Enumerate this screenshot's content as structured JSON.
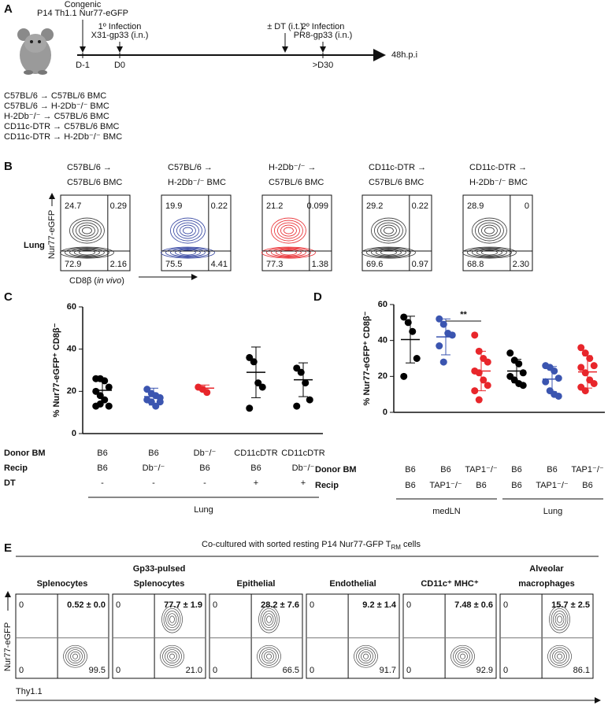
{
  "panel_labels": [
    "A",
    "B",
    "C",
    "D",
    "E"
  ],
  "panel_a": {
    "events": [
      {
        "lines": [
          "Congenic",
          "P14 Th1.1 Nur77-eGFP"
        ],
        "day": "D-1"
      },
      {
        "lines": [
          "1º Infection",
          "X31-gp33 (i.n.)"
        ],
        "day": "D0"
      },
      {
        "lines": [
          "± DT (i.t.)"
        ]
      },
      {
        "lines": [
          "2º Infection",
          "PR8-gp33 (i.n.)"
        ],
        "day": ">D30"
      }
    ],
    "end_label": "48h.p.i",
    "groups": [
      {
        "text": "C57BL/6 → C57BL/6 BMC",
        "color": "#000000"
      },
      {
        "text": "C57BL/6 → H-2Db⁻/⁻ BMC",
        "color": "#2e3f9e"
      },
      {
        "text": "H-2Db⁻/⁻ → C57BL/6 BMC",
        "color": "#e8262b"
      },
      {
        "text": "CD11c-DTR → C57BL/6 BMC",
        "color": "#000000"
      },
      {
        "text": "CD11c-DTR → H-2Db⁻/⁻ BMC",
        "color": "#000000"
      }
    ]
  },
  "panel_b": {
    "row_label": "Lung",
    "y_label": "Nur77-eGFP",
    "x_label_parts": [
      "CD8β (",
      "in vivo",
      ")"
    ],
    "plots": [
      {
        "title": [
          "C57BL/6 →",
          "C57BL/6 BMC"
        ],
        "color": "#333333",
        "quadrants": [
          "24.7",
          "0.29",
          "72.9",
          "2.16"
        ]
      },
      {
        "title": [
          "C57BL/6 →",
          "H-2Db⁻/⁻ BMC"
        ],
        "color": "#2e3f9e",
        "quadrants": [
          "19.9",
          "0.22",
          "75.5",
          "4.41"
        ]
      },
      {
        "title": [
          "H-2Db⁻/⁻ →",
          "C57BL/6 BMC"
        ],
        "color": "#e8262b",
        "quadrants": [
          "21.2",
          "0.099",
          "77.3",
          "1.38"
        ]
      },
      {
        "title": [
          "CD11c-DTR →",
          "C57BL/6 BMC"
        ],
        "color": "#333333",
        "quadrants": [
          "29.2",
          "0.22",
          "69.6",
          "0.97"
        ]
      },
      {
        "title": [
          "CD11c-DTR →",
          "H-2Db⁻/⁻ BMC"
        ],
        "color": "#333333",
        "quadrants": [
          "28.9",
          "0",
          "68.8",
          "2.30"
        ]
      }
    ]
  },
  "chart_data": [
    {
      "type": "dot-plot",
      "y_label": "% Nur77-eGFP⁺ CD8β⁻",
      "ylim": [
        0,
        60
      ],
      "yticks": [
        0,
        20,
        40,
        60
      ],
      "groups": [
        {
          "color": "#000000",
          "values": [
            26,
            26,
            25,
            22,
            20,
            18,
            16,
            13,
            13,
            14
          ],
          "mean": 20.5,
          "sd": 5.5
        },
        {
          "color": "#3b55b0",
          "values": [
            21,
            19,
            18,
            17,
            16,
            15,
            13,
            15
          ],
          "mean": 17.5,
          "sd": 4
        },
        {
          "color": "#e8262b",
          "values": [
            22,
            21,
            19.5
          ],
          "mean": 21.5,
          "sd": 1.5
        },
        {
          "color": "#000000",
          "values": [
            36,
            34,
            24,
            22,
            12
          ],
          "mean": 29,
          "sd": 12
        },
        {
          "color": "#000000",
          "values": [
            31,
            29,
            24,
            16,
            13
          ],
          "mean": 25.5,
          "sd": 8
        }
      ],
      "table": [
        {
          "label": "Donor BM",
          "cells": [
            "B6",
            "B6",
            "Db⁻/⁻",
            "CD11cDTR",
            "CD11cDTR"
          ]
        },
        {
          "label": "Recip",
          "cells": [
            "B6",
            "Db⁻/⁻",
            "B6",
            "B6",
            "Db⁻/⁻"
          ]
        },
        {
          "label": "DT",
          "cells": [
            "-",
            "-",
            "-",
            "+",
            "+"
          ]
        }
      ],
      "brackets": [
        "Lung"
      ]
    },
    {
      "type": "dot-plot",
      "y_label": "% Nur77-eGFP⁺ CD8β⁻",
      "ylim": [
        0,
        60
      ],
      "yticks": [
        0,
        20,
        40,
        60
      ],
      "groups": [
        {
          "color": "#000000",
          "values": [
            53,
            50,
            45,
            30,
            20
          ],
          "mean": 40.5,
          "sd": 13
        },
        {
          "color": "#3b55b0",
          "values": [
            52,
            49,
            44,
            43,
            37,
            28
          ],
          "mean": 42,
          "sd": 10
        },
        {
          "color": "#e8262b",
          "values": [
            43,
            34,
            30,
            28,
            23,
            22,
            18,
            15,
            12,
            7
          ],
          "mean": 23,
          "sd": 11
        },
        {
          "color": "#000000",
          "values": [
            33,
            29,
            27,
            22,
            20,
            18,
            16,
            15
          ],
          "mean": 23,
          "sd": 6.5
        },
        {
          "color": "#3b55b0",
          "values": [
            26,
            25,
            23,
            19,
            17,
            12,
            10,
            9
          ],
          "mean": 18.5,
          "sd": 7
        },
        {
          "color": "#e8262b",
          "values": [
            36,
            33,
            30,
            26,
            25,
            22,
            18,
            16,
            14,
            12
          ],
          "mean": 22.5,
          "sd": 9
        }
      ],
      "table": [
        {
          "label": "Donor BM",
          "cells": [
            "B6",
            "B6",
            "TAP1⁻/⁻",
            "B6",
            "B6",
            "TAP1⁻/⁻"
          ]
        },
        {
          "label": "Recip",
          "cells": [
            "B6",
            "TAP1⁻/⁻",
            "B6",
            "B6",
            "TAP1⁻/⁻",
            "B6"
          ]
        }
      ],
      "brackets": [
        "medLN",
        "Lung"
      ],
      "annotation": "**"
    }
  ],
  "panel_e": {
    "header": [
      "Co-cultured with sorted resting P14 Nur77-GFP T",
      "RM",
      " cells"
    ],
    "y_label": "Nur77-eGFP",
    "x_label": "Thy1.1",
    "plots": [
      {
        "title": [
          "Splenocytes"
        ],
        "quadrants": [
          "0",
          "0.52 ± 0.0",
          "0",
          "99.5"
        ]
      },
      {
        "title": [
          "Gp33-pulsed",
          "Splenocytes"
        ],
        "quadrants": [
          "0",
          "77.7 ± 1.9",
          "0",
          "21.0"
        ]
      },
      {
        "title": [
          "Epithelial"
        ],
        "quadrants": [
          "0",
          "28.2 ± 7.6",
          "0",
          "66.5"
        ]
      },
      {
        "title": [
          "Endothelial"
        ],
        "quadrants": [
          "0",
          "9.2 ± 1.4",
          "0",
          "91.7"
        ]
      },
      {
        "title": [
          "CD11c⁺ MHC⁺"
        ],
        "quadrants": [
          "0",
          "7.48 ± 0.6",
          "0",
          "92.9"
        ]
      },
      {
        "title": [
          "Alveolar",
          "macrophages"
        ],
        "quadrants": [
          "0",
          "15.7 ± 2.5",
          "0",
          "86.1"
        ]
      }
    ]
  }
}
